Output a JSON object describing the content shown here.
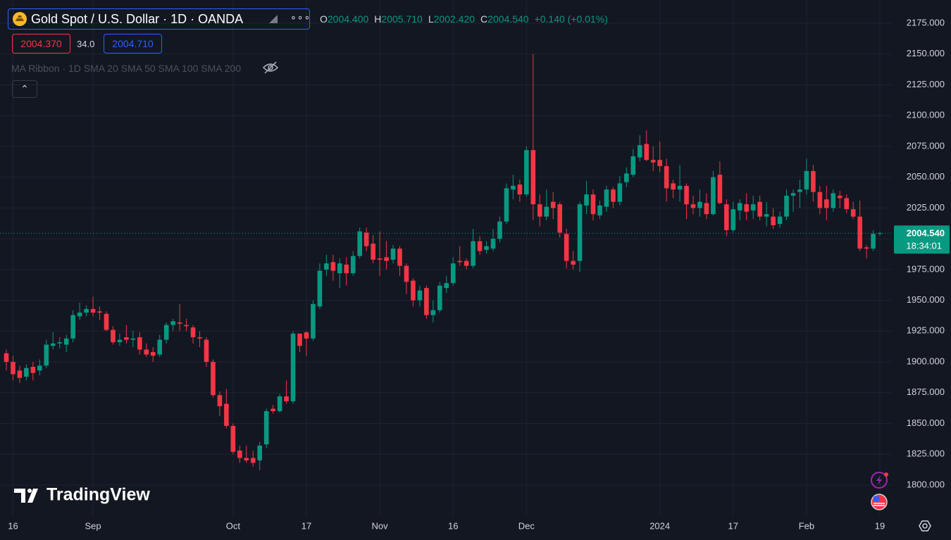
{
  "header": {
    "title": "Gold Spot / U.S. Dollar · 1D · OANDA",
    "ohlc": [
      {
        "key": "O",
        "value": "2004.400"
      },
      {
        "key": "H",
        "value": "2005.710"
      },
      {
        "key": "L",
        "value": "2002.420"
      },
      {
        "key": "C",
        "value": "2004.540"
      }
    ],
    "change": "+0.140 (+0.01%)",
    "bid": "2004.370",
    "spread": "34.0",
    "ask": "2004.710",
    "indicator": "MA Ribbon",
    "indicator_args": "1D SMA 20 SMA 50 SMA 100 SMA 200"
  },
  "watermark": "TradingView",
  "chart_data": {
    "type": "candlestick",
    "up_color": "#089981",
    "down_color": "#f23645",
    "grid": true,
    "categories": [
      null,
      "16",
      null,
      null,
      null,
      null,
      null,
      null,
      null,
      null,
      null,
      null,
      null,
      "Sep",
      null,
      null,
      null,
      null,
      null,
      null,
      null,
      null,
      null,
      null,
      null,
      null,
      null,
      null,
      null,
      null,
      null,
      null,
      null,
      null,
      "Oct",
      null,
      null,
      null,
      null,
      null,
      null,
      null,
      null,
      null,
      null,
      "17",
      null,
      null,
      null,
      null,
      null,
      null,
      null,
      null,
      null,
      null,
      "Nov",
      null,
      null,
      null,
      null,
      null,
      null,
      null,
      null,
      null,
      null,
      "16",
      null,
      null,
      null,
      null,
      null,
      null,
      null,
      null,
      null,
      null,
      "Dec",
      null,
      null,
      null,
      null,
      null,
      null,
      null,
      null,
      null,
      null,
      null,
      null,
      null,
      null,
      null,
      null,
      null,
      null,
      null,
      "2024",
      null,
      null,
      null,
      null,
      null,
      null,
      null,
      null,
      null,
      null,
      "17",
      null,
      null,
      null,
      null,
      null,
      null,
      null,
      null,
      null,
      null,
      "Feb",
      null,
      null,
      null,
      null,
      null,
      null,
      null,
      null,
      null,
      null,
      "19"
    ],
    "open": [
      1907,
      1900,
      1893,
      1888,
      1896,
      1893,
      1897,
      1913,
      1915,
      1914,
      1919,
      1937,
      1940,
      1943,
      1941,
      1939,
      1926,
      1916,
      1920,
      1918,
      1920,
      1910,
      1908,
      1906,
      1918,
      1930,
      1932,
      1930,
      1928,
      1920,
      1918,
      1900,
      1873,
      1866,
      1848,
      1828,
      1822,
      1822,
      1820,
      1833,
      1862,
      1860,
      1872,
      1868,
      1923,
      1924,
      1919,
      1945,
      1975,
      1981,
      1972,
      1979,
      1972,
      1986,
      2005,
      1996,
      1984,
      1985,
      1983,
      1992,
      1978,
      1966,
      1950,
      1960,
      1938,
      1942,
      1960,
      1964,
      1982,
      1982,
      1978,
      1998,
      1991,
      1992,
      2000,
      2014,
      2040,
      2044,
      2036,
      2072,
      2028,
      2018,
      2030,
      2028,
      2004,
      1982,
      1982,
      2027,
      2036,
      2019,
      2026,
      2040,
      2030,
      2046,
      2052,
      2066,
      2077,
      2064,
      2064,
      2059,
      2045,
      2040,
      2043,
      2028,
      2025,
      2029,
      2020,
      2052,
      2028,
      2007,
      2023,
      2028,
      2023,
      2030,
      2018,
      2018,
      2012,
      2018,
      2035,
      2038,
      2040,
      2055,
      2038,
      2032,
      2025,
      2035,
      2033,
      2024,
      2018,
      1993,
      1992,
      2004.4
    ],
    "high": [
      1910,
      1905,
      1897,
      1898,
      1900,
      1902,
      1918,
      1924,
      1920,
      1922,
      1942,
      1948,
      1946,
      1953,
      1945,
      1941,
      1929,
      1923,
      1930,
      1925,
      1924,
      1915,
      1912,
      1922,
      1932,
      1935,
      1947,
      1935,
      1930,
      1925,
      1920,
      1902,
      1876,
      1878,
      1850,
      1832,
      1832,
      1828,
      1835,
      1862,
      1865,
      1874,
      1885,
      1925,
      1923,
      1925,
      1950,
      1980,
      1987,
      1987,
      1984,
      1985,
      1990,
      2009,
      2009,
      2003,
      2006,
      1998,
      1995,
      1994,
      1980,
      1968,
      1962,
      1962,
      1950,
      1965,
      1970,
      1985,
      1994,
      1984,
      2008,
      2002,
      1998,
      2008,
      2018,
      2045,
      2052,
      2048,
      2075,
      2150,
      2036,
      2040,
      2038,
      2030,
      2008,
      1990,
      2030,
      2047,
      2040,
      2031,
      2043,
      2042,
      2051,
      2058,
      2073,
      2084,
      2088,
      2075,
      2079,
      2065,
      2048,
      2060,
      2045,
      2035,
      2040,
      2037,
      2055,
      2063,
      2032,
      2030,
      2032,
      2037,
      2035,
      2035,
      2030,
      2025,
      2022,
      2040,
      2040,
      2048,
      2065,
      2060,
      2043,
      2043,
      2040,
      2039,
      2036,
      2030,
      2031,
      1995,
      2007,
      2005.71
    ],
    "low": [
      1893,
      1885,
      1883,
      1885,
      1885,
      1889,
      1895,
      1910,
      1911,
      1908,
      1916,
      1934,
      1937,
      1937,
      1934,
      1925,
      1914,
      1913,
      1915,
      1912,
      1906,
      1904,
      1900,
      1904,
      1915,
      1925,
      1925,
      1925,
      1915,
      1912,
      1896,
      1871,
      1856,
      1846,
      1825,
      1818,
      1818,
      1815,
      1812,
      1830,
      1858,
      1859,
      1866,
      1866,
      1908,
      1905,
      1917,
      1943,
      1970,
      1966,
      1960,
      1962,
      1970,
      1984,
      1990,
      1980,
      1970,
      1975,
      1980,
      1970,
      1955,
      1945,
      1945,
      1935,
      1932,
      1940,
      1956,
      1962,
      1978,
      1975,
      1976,
      1987,
      1988,
      1990,
      1997,
      2012,
      2032,
      2030,
      2034,
      2015,
      2010,
      2015,
      2016,
      2001,
      1976,
      1975,
      1973,
      2020,
      2015,
      2016,
      2022,
      2025,
      2027,
      2042,
      2050,
      2063,
      2063,
      2055,
      2054,
      2030,
      2033,
      2030,
      2016,
      2020,
      2018,
      2016,
      2019,
      2028,
      2002,
      2005,
      2015,
      2015,
      2016,
      2015,
      2010,
      2008,
      2009,
      2015,
      2022,
      2025,
      2036,
      2030,
      2020,
      2015,
      2022,
      2025,
      2021,
      2016,
      1990,
      1984,
      1990,
      2002.42
    ],
    "close": [
      1900,
      1890,
      1887,
      1895,
      1891,
      1897,
      1914,
      1915,
      1916,
      1919,
      1938,
      1940,
      1943,
      1940,
      1940,
      1926,
      1916,
      1918,
      1918,
      1919,
      1910,
      1906,
      1905,
      1918,
      1930,
      1933,
      1931,
      1929,
      1920,
      1919,
      1900,
      1873,
      1864,
      1848,
      1827,
      1822,
      1820,
      1818,
      1832,
      1860,
      1860,
      1872,
      1868,
      1923,
      1913,
      1919,
      1947,
      1974,
      1980,
      1974,
      1980,
      1972,
      1986,
      2006,
      1994,
      1983,
      1983,
      1982,
      1992,
      1978,
      1965,
      1950,
      1958,
      1938,
      1942,
      1962,
      1964,
      1980,
      1981,
      1978,
      1998,
      1990,
      1994,
      2000,
      2014,
      2041,
      2043,
      2036,
      2072,
      2028,
      2018,
      2026,
      2025,
      2005,
      1982,
      1979,
      2028,
      2036,
      2020,
      2027,
      2040,
      2030,
      2045,
      2053,
      2067,
      2076,
      2064,
      2062,
      2059,
      2041,
      2040,
      2043,
      2028,
      2025,
      2030,
      2020,
      2050,
      2029,
      2007,
      2024,
      2029,
      2022,
      2028,
      2018,
      2020,
      2011,
      2018,
      2035,
      2037,
      2040,
      2055,
      2038,
      2025,
      2025,
      2037,
      2033,
      2024,
      2018,
      1992,
      1992,
      2004,
      2004.54
    ],
    "last_price": {
      "value": 2004.54,
      "label": "2004.540"
    },
    "countdown": "18:34:01",
    "ylim": [
      1774.8,
      2193.9
    ],
    "yticks": [
      {
        "value": 1800,
        "label": "1800.000"
      },
      {
        "value": 1825,
        "label": "1825.000"
      },
      {
        "value": 1850,
        "label": "1850.000"
      },
      {
        "value": 1875,
        "label": "1875.000"
      },
      {
        "value": 1900,
        "label": "1900.000"
      },
      {
        "value": 1925,
        "label": "1925.000"
      },
      {
        "value": 1950,
        "label": "1950.000"
      },
      {
        "value": 1975,
        "label": "1975.000"
      },
      {
        "value": 2000,
        "label": "2000.000"
      },
      {
        "value": 2025,
        "label": "2025.000"
      },
      {
        "value": 2050,
        "label": "2050.000"
      },
      {
        "value": 2075,
        "label": "2075.000"
      },
      {
        "value": 2100,
        "label": "2100.000"
      },
      {
        "value": 2125,
        "label": "2125.000"
      },
      {
        "value": 2150,
        "label": "2150.000"
      },
      {
        "value": 2175,
        "label": "2175.000"
      }
    ]
  }
}
